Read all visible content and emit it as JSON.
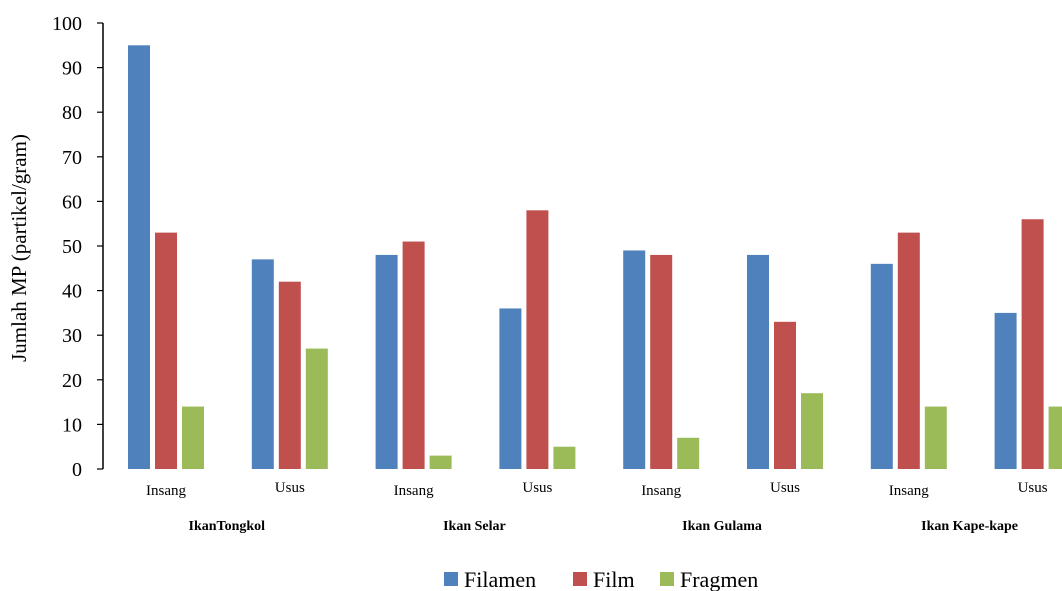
{
  "chart_data": {
    "type": "bar",
    "ylabel": "Jumlah MP (partikel/gram)",
    "ylim": [
      0,
      100
    ],
    "yticks": [
      0,
      10,
      20,
      30,
      40,
      50,
      60,
      70,
      80,
      90,
      100
    ],
    "groups": [
      "IkanTongkol",
      "Ikan Selar",
      "Ikan Gulama",
      "Ikan Kape-kape"
    ],
    "categories": [
      "Insang",
      "Usus",
      "Insang",
      "Usus",
      "Insang",
      "Usus",
      "Insang",
      "Usus"
    ],
    "series": [
      {
        "name": "Filamen",
        "color": "#4f81bd",
        "values": [
          95,
          47,
          48,
          36,
          49,
          48,
          46,
          35
        ]
      },
      {
        "name": "Film",
        "color": "#c0504d",
        "values": [
          53,
          42,
          51,
          58,
          48,
          33,
          53,
          56
        ]
      },
      {
        "name": "Fragmen",
        "color": "#9bbb59",
        "values": [
          14,
          27,
          3,
          5,
          7,
          17,
          14,
          14
        ]
      }
    ],
    "legend_position": "bottom",
    "grid": false
  }
}
